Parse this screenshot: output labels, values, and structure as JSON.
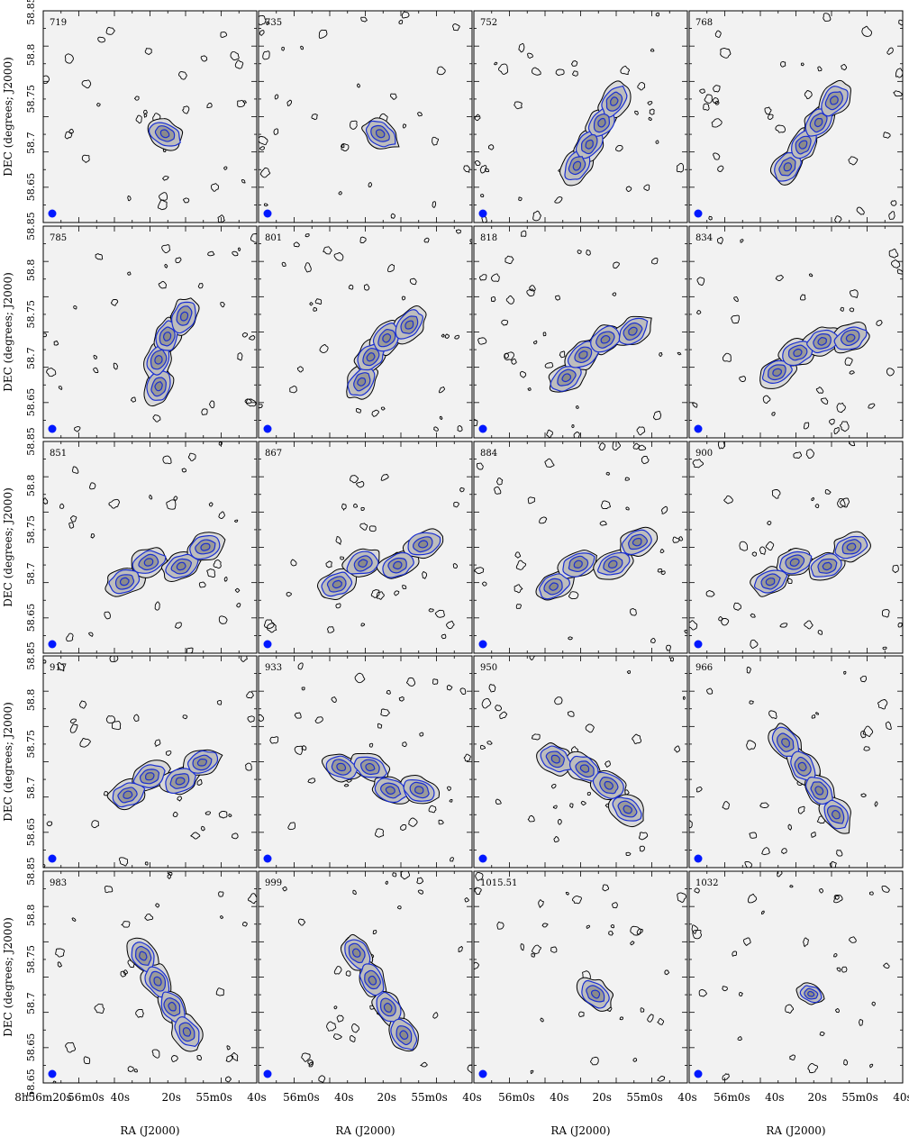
{
  "figure": {
    "ylabel": "DEC (degrees; J2000)",
    "xlabel": "RA (J2000)",
    "dec_ticks": [
      "58.85",
      "58.8",
      "58.75",
      "58.7",
      "58.65",
      "58.65"
    ],
    "ra_ticks_first": [
      "8h56m20s",
      "56m0s",
      "40s",
      "20s",
      "55m0s",
      "40s"
    ],
    "ra_ticks_other": [
      "56m0s",
      "40s",
      "20s",
      "55m0s",
      "40s"
    ],
    "colors": {
      "background_gray": "#f2f2f2",
      "contour_black": "#000000",
      "contour_blue": "#1a2fd1",
      "beam": "#0018ff",
      "emission_gray": "#8a8a8a"
    },
    "panels": [
      {
        "label": "719",
        "pa": -30,
        "length": 0.12,
        "morph": "compact"
      },
      {
        "label": "735",
        "pa": -35,
        "length": 0.25,
        "morph": "compact"
      },
      {
        "label": "752",
        "pa": 60,
        "length": 0.55,
        "morph": "elongated"
      },
      {
        "label": "768",
        "pa": 55,
        "length": 0.6,
        "morph": "elongated"
      },
      {
        "label": "785",
        "pa": 70,
        "length": 0.55,
        "morph": "bent"
      },
      {
        "label": "801",
        "pa": 50,
        "length": 0.55,
        "morph": "bent"
      },
      {
        "label": "818",
        "pa": 35,
        "length": 0.6,
        "morph": "bent"
      },
      {
        "label": "834",
        "pa": 25,
        "length": 0.6,
        "morph": "bent"
      },
      {
        "label": "851",
        "pa": 20,
        "length": 0.65,
        "morph": "wave"
      },
      {
        "label": "867",
        "pa": 22,
        "length": 0.7,
        "morph": "wave"
      },
      {
        "label": "884",
        "pa": 25,
        "length": 0.7,
        "morph": "wave"
      },
      {
        "label": "900",
        "pa": 20,
        "length": 0.65,
        "morph": "wave"
      },
      {
        "label": "917",
        "pa": 20,
        "length": 0.6,
        "morph": "wave"
      },
      {
        "label": "933",
        "pa": -20,
        "length": 0.6,
        "morph": "wave"
      },
      {
        "label": "950",
        "pa": -35,
        "length": 0.65,
        "morph": "bent"
      },
      {
        "label": "966",
        "pa": -55,
        "length": 0.65,
        "morph": "elongated"
      },
      {
        "label": "983",
        "pa": -60,
        "length": 0.65,
        "morph": "elongated"
      },
      {
        "label": "999",
        "pa": -60,
        "length": 0.7,
        "morph": "elongated"
      },
      {
        "label": "1015.51",
        "pa": -40,
        "length": 0.18,
        "morph": "compact"
      },
      {
        "label": "1032",
        "pa": -20,
        "length": 0.08,
        "morph": "compact"
      }
    ]
  }
}
